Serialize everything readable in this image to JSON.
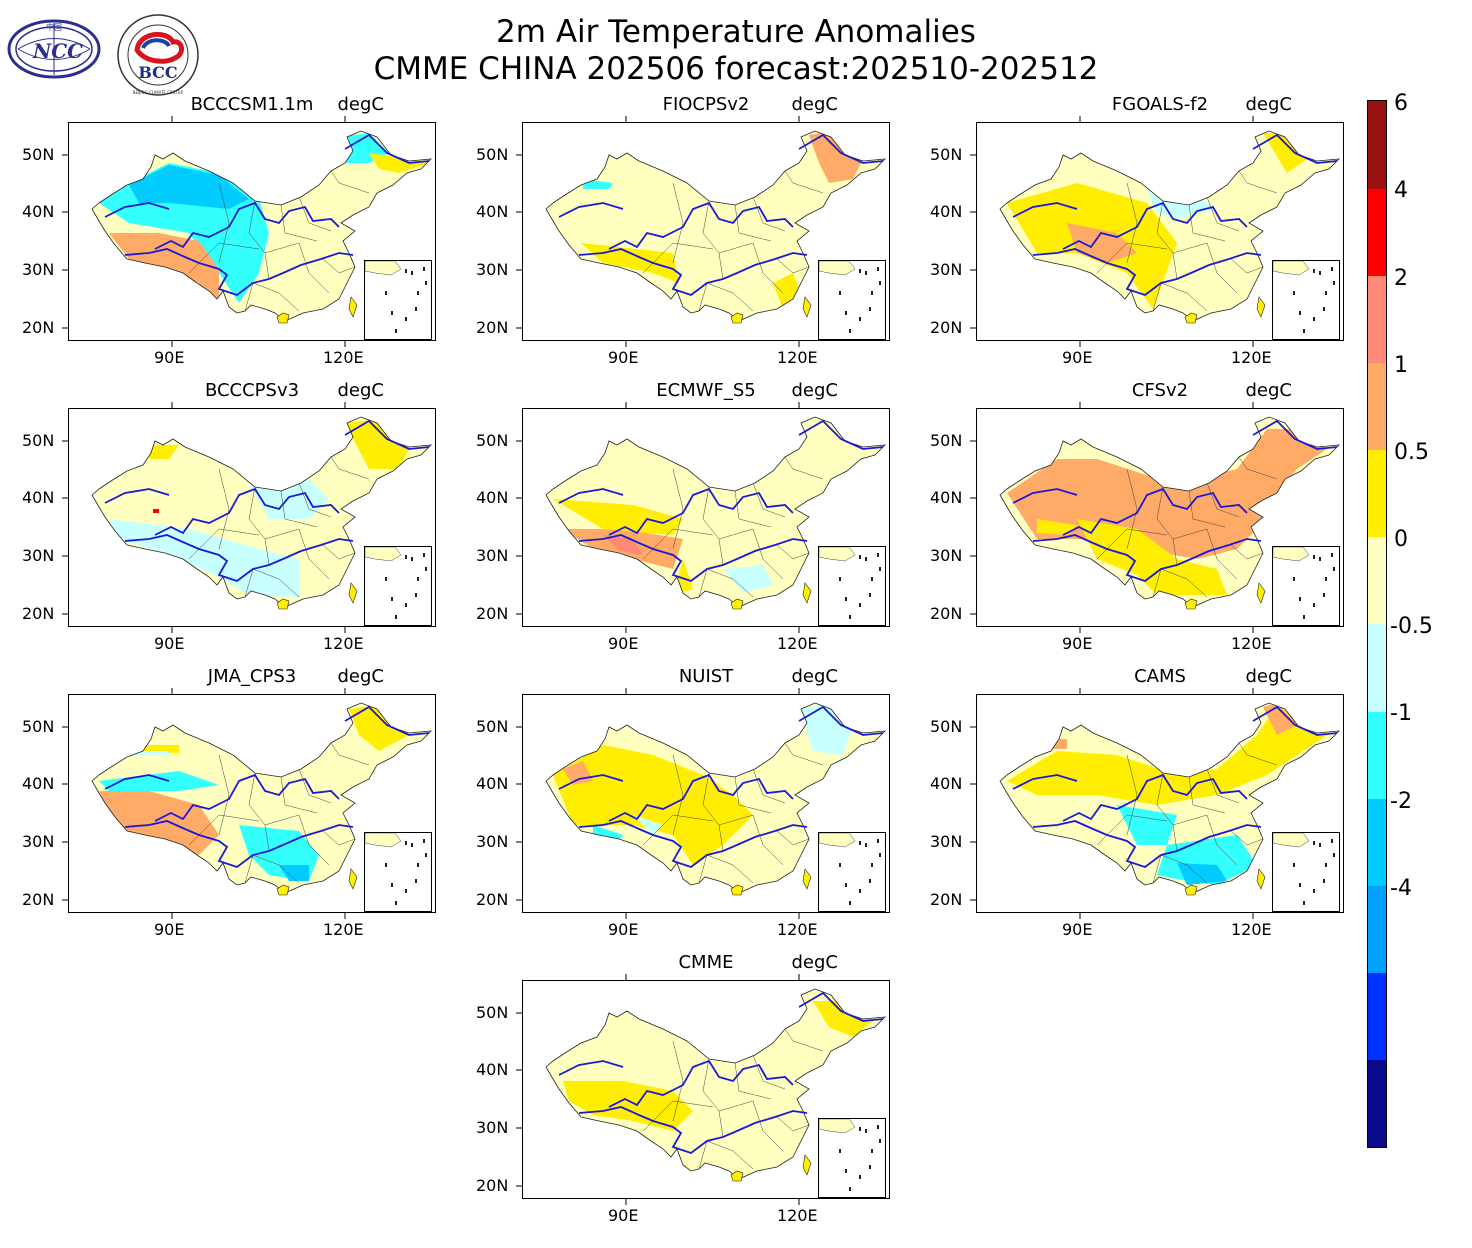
{
  "header": {
    "title_line1": "2m Air Temperature Anomalies",
    "title_line2": "CMME CHINA 202506 forecast:202510-202512"
  },
  "logos": [
    {
      "name": "NCC",
      "text": "NCC",
      "small_text": "中国"
    },
    {
      "name": "BCC",
      "text": "BCC",
      "ring_text": "BEIJING CLIMATE CENTER"
    }
  ],
  "axis_labels": {
    "lat": [
      "50N",
      "40N",
      "30N",
      "20N"
    ],
    "lon": [
      "90E",
      "120E"
    ]
  },
  "panels": [
    {
      "model": "BCCCSM1.1m",
      "unit": "degC",
      "dominant": [
        -1,
        -0.5,
        0,
        1
      ]
    },
    {
      "model": "FIOCPSv2",
      "unit": "degC",
      "dominant": [
        0,
        0.5,
        1
      ]
    },
    {
      "model": "FGOALS-f2",
      "unit": "degC",
      "dominant": [
        0,
        0.5,
        1
      ]
    },
    {
      "model": "BCCCPSv3",
      "unit": "degC",
      "dominant": [
        -0.5,
        0,
        0.5
      ]
    },
    {
      "model": "ECMWF_S5",
      "unit": "degC",
      "dominant": [
        0,
        0.5,
        1
      ]
    },
    {
      "model": "CFSv2",
      "unit": "degC",
      "dominant": [
        0.5,
        1,
        2
      ]
    },
    {
      "model": "JMA_CPS3",
      "unit": "degC",
      "dominant": [
        -1,
        -0.5,
        0,
        1,
        2
      ]
    },
    {
      "model": "NUIST",
      "unit": "degC",
      "dominant": [
        -0.5,
        0,
        0.5,
        1
      ]
    },
    {
      "model": "CAMS",
      "unit": "degC",
      "dominant": [
        -1,
        -0.5,
        0,
        0.5,
        1
      ]
    },
    {
      "model": "CMME",
      "unit": "degC",
      "dominant": [
        0,
        0.5
      ]
    }
  ],
  "colorbar": {
    "colors": [
      "#0a0a8c",
      "#0032ff",
      "#00a0ff",
      "#00ccff",
      "#33ffff",
      "#c8ffff",
      "#ffffc0",
      "#ffee00",
      "#ffaa66",
      "#ff8877",
      "#ff0000",
      "#991111"
    ],
    "labels": [
      "6",
      "4",
      "2",
      "1",
      "0.5",
      "0",
      "-0.5",
      "-1",
      "-2",
      "-4"
    ]
  }
}
